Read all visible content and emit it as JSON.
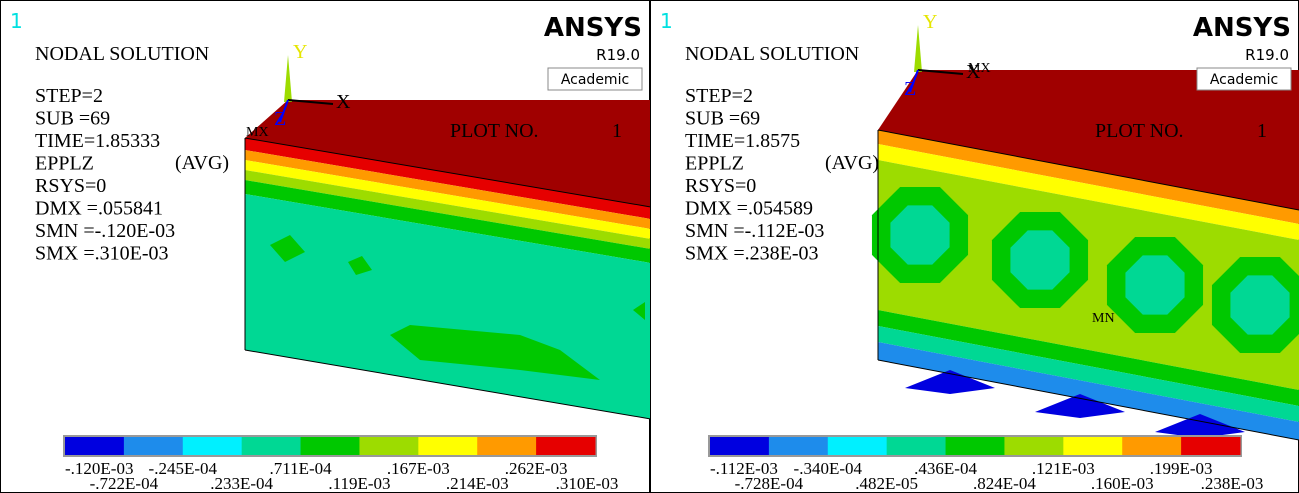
{
  "panels": [
    {
      "window_number": "1",
      "title": "NODAL SOLUTION",
      "info": [
        "STEP=2",
        "SUB =69",
        "TIME=1.85333",
        "EPPLZ",
        "RSYS=0",
        "DMX =.055841",
        "SMN =-.120E-03",
        "SMX =.310E-03"
      ],
      "avg": "(AVG)",
      "brand": "ANSYS",
      "version": "R19.0",
      "license": "Academic",
      "plot_label": "PLOT NO.",
      "plot_number": "1",
      "axes": {
        "x": "X",
        "y": "Y",
        "z": "Z"
      },
      "max_marker": "MX",
      "legend_top": [
        "-.120E-03",
        "-.245E-04",
        ".711E-04",
        ".167E-03",
        ".262E-03"
      ],
      "legend_bottom": [
        "-.722E-04",
        ".233E-04",
        ".119E-03",
        ".214E-03",
        ".310E-03"
      ]
    },
    {
      "window_number": "1",
      "title": "NODAL SOLUTION",
      "info": [
        "STEP=2",
        "SUB =69",
        "TIME=1.8575",
        "EPPLZ",
        "RSYS=0",
        "DMX =.054589",
        "SMN =-.112E-03",
        "SMX =.238E-03"
      ],
      "avg": "(AVG)",
      "brand": "ANSYS",
      "version": "R19.0",
      "license": "Academic",
      "plot_label": "PLOT NO.",
      "plot_number": "1",
      "axes": {
        "x": "X",
        "y": "Y",
        "z": "Z"
      },
      "max_marker": "MX",
      "min_marker": "MN",
      "legend_top": [
        "-.112E-03",
        "-.340E-04",
        ".436E-04",
        ".121E-03",
        ".199E-03"
      ],
      "legend_bottom": [
        "-.728E-04",
        ".482E-05",
        ".824E-04",
        ".160E-03",
        ".238E-03"
      ]
    }
  ]
}
